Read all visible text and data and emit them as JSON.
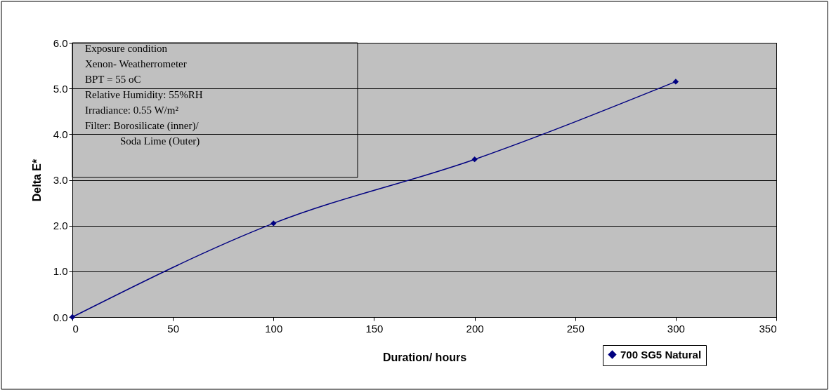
{
  "chart_data": {
    "type": "line",
    "xlabel": "Duration/ hours",
    "ylabel": "Delta E*",
    "x": [
      0,
      100,
      200,
      300
    ],
    "series": [
      {
        "name": "700 SG5 Natural",
        "color": "#000080",
        "values": [
          0.0,
          2.05,
          3.45,
          5.15
        ]
      }
    ],
    "xlim": [
      0,
      350
    ],
    "xticks": [
      0,
      50,
      100,
      150,
      200,
      250,
      300,
      350
    ],
    "ylim": [
      0,
      6
    ],
    "yticks": [
      {
        "value": 0,
        "label": "0.0"
      },
      {
        "value": 1,
        "label": "1.0"
      },
      {
        "value": 2,
        "label": "2.0"
      },
      {
        "value": 3,
        "label": "3.0"
      },
      {
        "value": 4,
        "label": "4.0"
      },
      {
        "value": 5,
        "label": "5.0"
      },
      {
        "value": 6,
        "label": "6.0"
      }
    ],
    "grid": "y",
    "legend": "bottom right",
    "marker": "diamond",
    "line_style": "solid",
    "annotations": [
      "Exposure condition",
      "Xenon- Weatherrometer",
      "BPT = 55 oC",
      "Relative Humidity: 55%RH",
      "Irradiance: 0.55 W/m²",
      "Filter: Borosilicate (inner)/",
      "Soda Lime (Outer)"
    ]
  }
}
